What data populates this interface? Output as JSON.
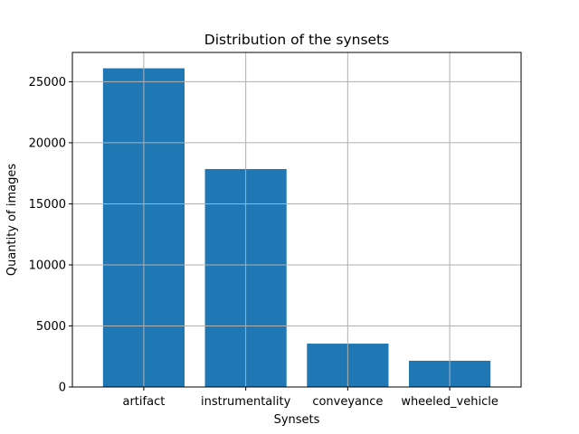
{
  "chart_data": {
    "type": "bar",
    "title": "Distribution of the synsets",
    "xlabel": "Synsets",
    "ylabel": "Quantity of images",
    "categories": [
      "artifact",
      "instrumentality",
      "conveyance",
      "wheeled_vehicle"
    ],
    "values": [
      26100,
      17850,
      3550,
      2150
    ],
    "ylim": [
      0,
      27400
    ],
    "yticks": [
      0,
      5000,
      10000,
      15000,
      20000,
      25000
    ],
    "ytick_labels": [
      "0",
      "5000",
      "10000",
      "15000",
      "20000",
      "25000"
    ],
    "grid": true,
    "legend": "none",
    "colors": {
      "bar": "#1f77b4",
      "grid": "#b0b0b0",
      "axes": "#000000"
    }
  }
}
